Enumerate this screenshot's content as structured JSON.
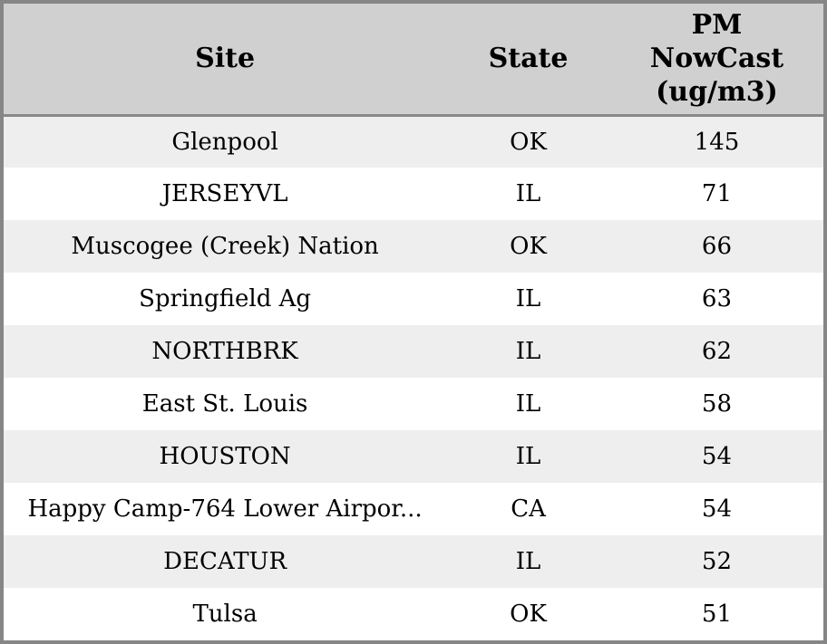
{
  "chart_data": {
    "type": "table",
    "columns": [
      "Site",
      "State",
      "PM NowCast (ug/m3)"
    ],
    "rows": [
      [
        "Glenpool",
        "OK",
        "145"
      ],
      [
        "JERSEYVL",
        "IL",
        "71"
      ],
      [
        "Muscogee (Creek) Nation",
        "OK",
        "66"
      ],
      [
        "Springfield Ag",
        "IL",
        "63"
      ],
      [
        "NORTHBRK",
        "IL",
        "62"
      ],
      [
        "East St. Louis",
        "IL",
        "58"
      ],
      [
        "HOUSTON",
        "IL",
        "54"
      ],
      [
        "Happy Camp-764 Lower Airpor...",
        "CA",
        "54"
      ],
      [
        "DECATUR",
        "IL",
        "52"
      ],
      [
        "Tulsa",
        "OK",
        "51"
      ]
    ]
  },
  "colors": {
    "header-bg": "#d0d0d0",
    "stripe-bg": "#eeeeee",
    "row-bg": "#ffffff",
    "border": "#868686",
    "header-separator": "#888888",
    "text": "#000000"
  }
}
